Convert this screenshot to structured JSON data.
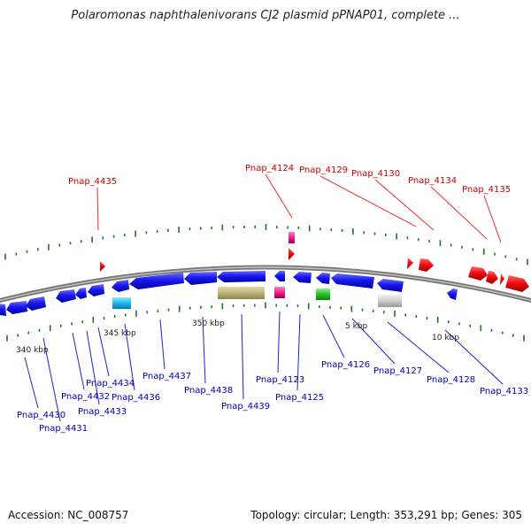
{
  "title": "Polaromonas naphthalenivorans CJ2 plasmid pPNAP01, complete ...",
  "accession_text": "Accession: NC_008757",
  "summary_text": "Topology: circular; Length: 353,291 bp; Genes: 305",
  "colors": {
    "forward_gene": "#e80000",
    "reverse_gene": "#1010e0",
    "backbone": "#888888",
    "tick_mark": "#1c7a1c",
    "label_forward": "#cc0000",
    "label_reverse": "#0000bb"
  },
  "scale_labels": [
    {
      "text": "340 kbp"
    },
    {
      "text": "345 kbp"
    },
    {
      "text": "350 kbp"
    },
    {
      "text": "5 kbp"
    },
    {
      "text": "10 kbp"
    }
  ],
  "forward_labels": [
    {
      "text": "Pnap_4435"
    },
    {
      "text": "Pnap_4124"
    },
    {
      "text": "Pnap_4129"
    },
    {
      "text": "Pnap_4130"
    },
    {
      "text": "Pnap_4134"
    },
    {
      "text": "Pnap_4135"
    }
  ],
  "reverse_labels": [
    {
      "text": "Pnap_4430"
    },
    {
      "text": "Pnap_4431"
    },
    {
      "text": "Pnap_4432"
    },
    {
      "text": "Pnap_4433"
    },
    {
      "text": "Pnap_4434"
    },
    {
      "text": "Pnap_4436"
    },
    {
      "text": "Pnap_4437"
    },
    {
      "text": "Pnap_4438"
    },
    {
      "text": "Pnap_4439"
    },
    {
      "text": "Pnap_4123"
    },
    {
      "text": "Pnap_4125"
    },
    {
      "text": "Pnap_4126"
    },
    {
      "text": "Pnap_4127"
    },
    {
      "text": "Pnap_4128"
    },
    {
      "text": "Pnap_4133"
    }
  ]
}
